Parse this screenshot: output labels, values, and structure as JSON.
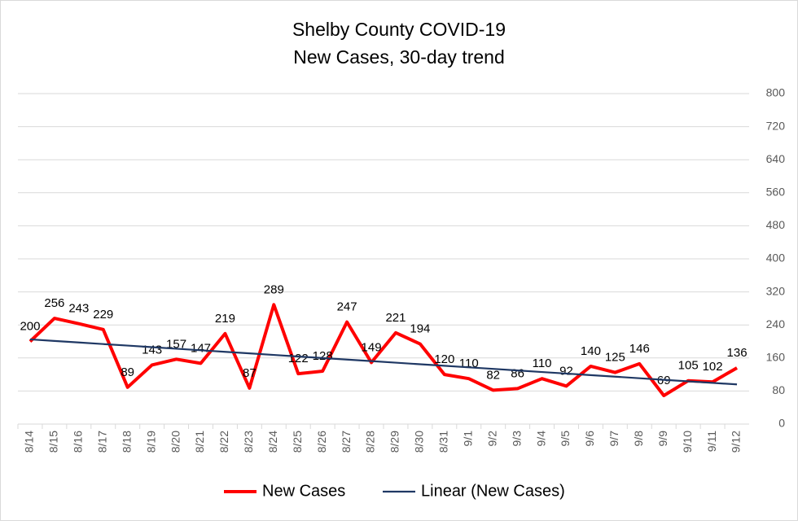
{
  "chart_data": {
    "type": "line",
    "title": [
      "Shelby County COVID-19",
      "New Cases, 30-day trend"
    ],
    "categories": [
      "8/14",
      "8/15",
      "8/16",
      "8/17",
      "8/18",
      "8/19",
      "8/20",
      "8/21",
      "8/22",
      "8/23",
      "8/24",
      "8/25",
      "8/26",
      "8/27",
      "8/28",
      "8/29",
      "8/30",
      "8/31",
      "9/1",
      "9/2",
      "9/3",
      "9/4",
      "9/5",
      "9/6",
      "9/7",
      "9/8",
      "9/9",
      "9/10",
      "9/11",
      "9/12"
    ],
    "series": [
      {
        "name": "New Cases",
        "color": "#ff0000",
        "data_labels": true,
        "values": [
          200,
          256,
          243,
          229,
          89,
          143,
          157,
          147,
          219,
          87,
          289,
          122,
          128,
          247,
          149,
          221,
          194,
          120,
          110,
          82,
          86,
          110,
          92,
          140,
          125,
          146,
          69,
          105,
          102,
          136
        ]
      },
      {
        "name": "Linear (New Cases)",
        "color": "#1f3864",
        "data_labels": false,
        "values": [
          205,
          201.2,
          197.5,
          193.7,
          190,
          186.2,
          182.4,
          178.7,
          174.9,
          171.2,
          167.4,
          163.6,
          159.9,
          156.1,
          152.4,
          148.6,
          144.8,
          141.1,
          137.3,
          133.6,
          129.8,
          126,
          122.3,
          118.5,
          114.8,
          111,
          107.2,
          103.5,
          99.7,
          96
        ]
      }
    ],
    "ylim": [
      0,
      800
    ],
    "yticks": [
      0,
      80,
      160,
      240,
      320,
      400,
      480,
      560,
      640,
      720,
      800
    ],
    "y_axis_side": "right",
    "grid": true,
    "legend": "bottom"
  }
}
